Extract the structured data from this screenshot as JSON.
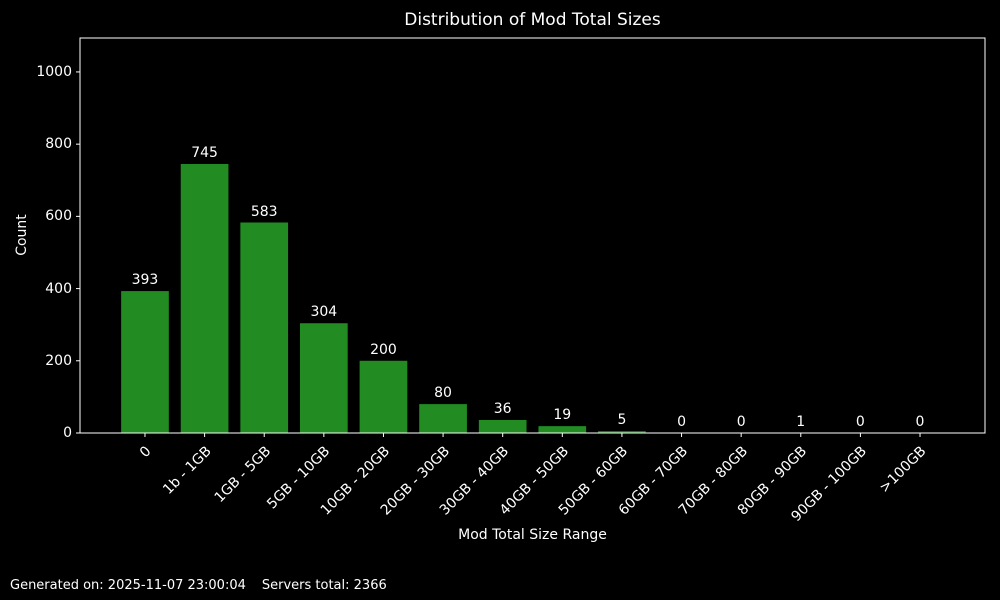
{
  "chart_data": {
    "type": "bar",
    "title": "Distribution of Mod Total Sizes",
    "xlabel": "Mod Total Size Range",
    "ylabel": "Count",
    "categories": [
      "0",
      "1b - 1GB",
      "1GB - 5GB",
      "5GB - 10GB",
      "10GB - 20GB",
      "20GB - 30GB",
      "30GB - 40GB",
      "40GB - 50GB",
      "50GB - 60GB",
      "60GB - 70GB",
      "70GB - 80GB",
      "80GB - 90GB",
      "90GB - 100GB",
      ">100GB"
    ],
    "values": [
      393,
      745,
      583,
      304,
      200,
      80,
      36,
      19,
      5,
      0,
      0,
      1,
      0,
      0
    ],
    "y_ticks": [
      0,
      200,
      400,
      600,
      800,
      1000
    ],
    "ylim": [
      0,
      1094
    ],
    "bar_width_fraction": 0.8,
    "grid": false,
    "legend": "none",
    "bar_color": "#228B22",
    "background_color": "#000000",
    "text_color": "#ffffff",
    "spine_color": "#ffffff"
  },
  "footer": {
    "generated": "Generated on: 2025-11-07 23:00:04",
    "servers_total": "Servers total: 2366"
  }
}
